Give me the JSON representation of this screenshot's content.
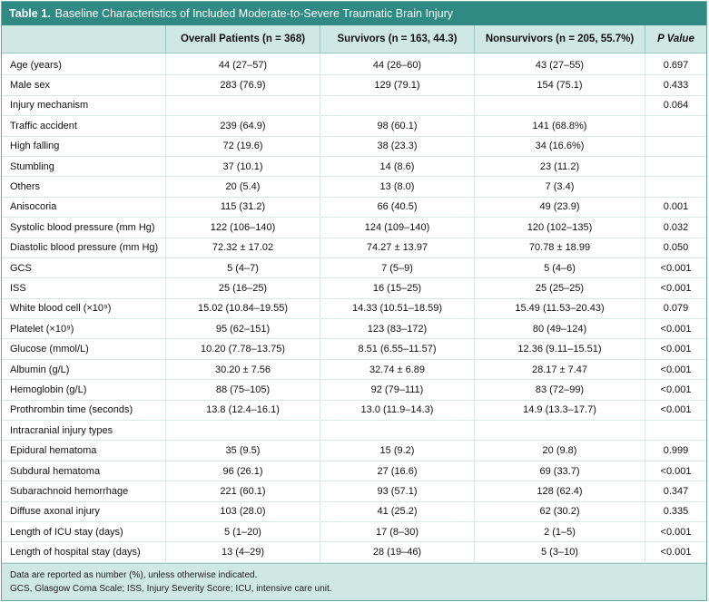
{
  "title": {
    "label": "Table 1.",
    "text": "Baseline Characteristics of Included Moderate-to-Severe Traumatic Brain Injury"
  },
  "columns": [
    "",
    "Overall Patients (n = 368)",
    "Survivors (n = 163, 44.3)",
    "Nonsurvivors (n = 205, 55.7%)",
    "P Value"
  ],
  "rows": [
    [
      "Age (years)",
      "44 (27–57)",
      "44 (26–60)",
      "43 (27–55)",
      "0.697"
    ],
    [
      "Male sex",
      "283 (76.9)",
      "129 (79.1)",
      "154 (75.1)",
      "0.433"
    ],
    [
      "Injury mechanism",
      "",
      "",
      "",
      "0.064"
    ],
    [
      "Traffic accident",
      "239 (64.9)",
      "98 (60.1)",
      "141 (68.8%)",
      ""
    ],
    [
      "High falling",
      "72 (19.6)",
      "38 (23.3)",
      "34 (16.6%)",
      ""
    ],
    [
      "Stumbling",
      "37 (10.1)",
      "14 (8.6)",
      "23 (11.2)",
      ""
    ],
    [
      "Others",
      "20 (5.4)",
      "13 (8.0)",
      "7 (3.4)",
      ""
    ],
    [
      "Anisocoria",
      "115 (31.2)",
      "66 (40.5)",
      "49 (23.9)",
      "0.001"
    ],
    [
      "Systolic blood pressure (mm Hg)",
      "122 (106–140)",
      "124 (109–140)",
      "120 (102–135)",
      "0.032"
    ],
    [
      "Diastolic blood pressure (mm Hg)",
      "72.32 ± 17.02",
      "74.27 ± 13.97",
      "70.78 ± 18.99",
      "0.050"
    ],
    [
      "GCS",
      "5 (4–7)",
      "7 (5–9)",
      "5 (4–6)",
      "<0.001"
    ],
    [
      "ISS",
      "25 (16–25)",
      "16 (15–25)",
      "25 (25–25)",
      "<0.001"
    ],
    [
      "White blood cell (×10⁹)",
      "15.02 (10.84–19.55)",
      "14.33 (10.51–18.59)",
      "15.49 (11.53–20.43)",
      "0.079"
    ],
    [
      "Platelet (×10⁹)",
      "95 (62–151)",
      "123 (83–172)",
      "80 (49–124)",
      "<0.001"
    ],
    [
      "Glucose (mmol/L)",
      "10.20 (7.78–13.75)",
      "8.51 (6.55–11.57)",
      "12.36 (9.11–15.51)",
      "<0.001"
    ],
    [
      "Albumin (g/L)",
      "30.20 ± 7.56",
      "32.74 ± 6.89",
      "28.17 ± 7.47",
      "<0.001"
    ],
    [
      "Hemoglobin (g/L)",
      "88 (75–105)",
      "92 (79–111)",
      "83 (72–99)",
      "<0.001"
    ],
    [
      "Prothrombin time (seconds)",
      "13.8 (12.4–16.1)",
      "13.0 (11.9–14.3)",
      "14.9 (13.3–17.7)",
      "<0.001"
    ],
    [
      "Intracranial injury types",
      "",
      "",
      "",
      ""
    ],
    [
      "Epidural hematoma",
      "35 (9.5)",
      "15 (9.2)",
      "20 (9.8)",
      "0.999"
    ],
    [
      "Subdural hematoma",
      "96 (26.1)",
      "27 (16.6)",
      "69 (33.7)",
      "<0.001"
    ],
    [
      "Subarachnoid hemorrhage",
      "221 (60.1)",
      "93 (57.1)",
      "128 (62.4)",
      "0.347"
    ],
    [
      "Diffuse axonal injury",
      "103 (28.0)",
      "41 (25.2)",
      "62 (30.2)",
      "0.335"
    ],
    [
      "Length of ICU stay (days)",
      "5 (1–20)",
      "17 (8–30)",
      "2 (1–5)",
      "<0.001"
    ],
    [
      "Length of hospital stay (days)",
      "13 (4–29)",
      "28 (19–46)",
      "5 (3–10)",
      "<0.001"
    ]
  ],
  "footnotes": [
    "Data are reported as number (%), unless otherwise indicated.",
    "GCS, Glasgow Coma Scale; ISS, Injury Severity Score; ICU, intensive care unit."
  ],
  "colors": {
    "title_bg": "#2f8a84",
    "header_bg": "#cfe8e4"
  }
}
